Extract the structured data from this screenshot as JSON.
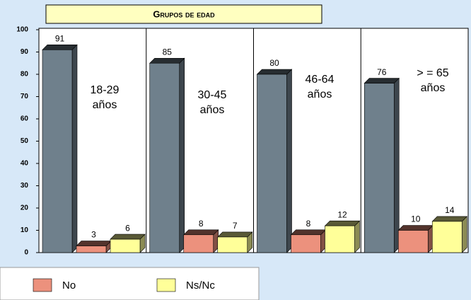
{
  "chart_data": {
    "type": "bar3d",
    "title": "Grupos de edad",
    "categories": [
      "18-29 años",
      "30-45 años",
      "46-64 años",
      "> = 65 años"
    ],
    "series": [
      {
        "color": "#6f808c",
        "values": [
          91,
          85,
          80,
          76
        ]
      },
      {
        "name": "No",
        "color": "#ec917d",
        "values": [
          3,
          8,
          8,
          10
        ]
      },
      {
        "name": "Ns/Nc",
        "color": "#ffff99",
        "values": [
          6,
          7,
          12,
          14
        ]
      }
    ],
    "ylim": [
      0,
      100
    ],
    "yticks": [
      0,
      10,
      20,
      30,
      40,
      50,
      60,
      70,
      80,
      90,
      100
    ]
  }
}
